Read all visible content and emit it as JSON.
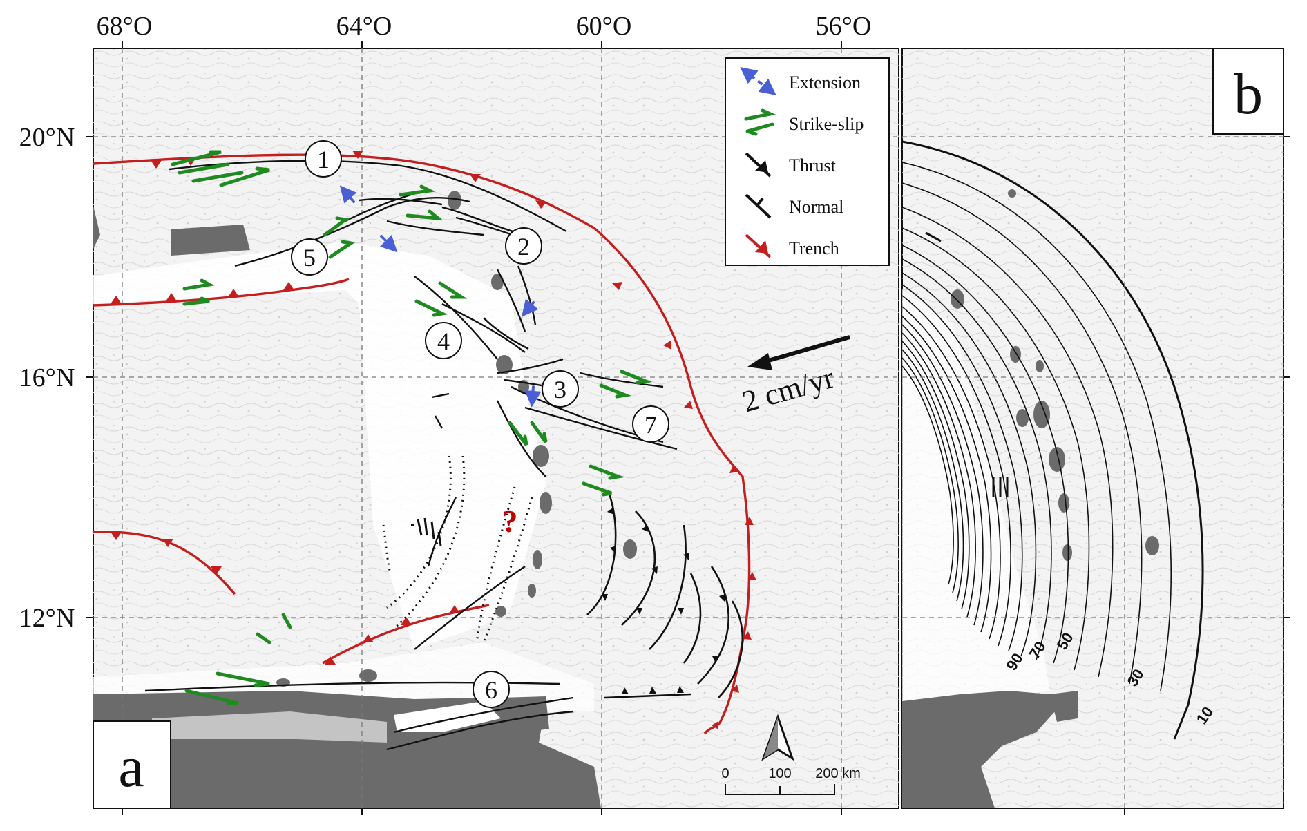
{
  "longitude_labels": [
    "68°O",
    "64°O",
    "60°O",
    "56°O"
  ],
  "latitude_labels": [
    "20°N",
    "16°N",
    "12°N"
  ],
  "legend": [
    {
      "label": "Extension",
      "symbol": "extension-arrow",
      "color": "#4a5fd4"
    },
    {
      "label": "Strike-slip",
      "symbol": "strike-slip-arrows",
      "color": "#1f8a1f"
    },
    {
      "label": "Thrust",
      "symbol": "thrust-fault",
      "color": "#111111"
    },
    {
      "label": "Normal",
      "symbol": "normal-fault",
      "color": "#111111"
    },
    {
      "label": "Trench",
      "symbol": "trench",
      "color": "#c41e1e"
    }
  ],
  "panel_a_label": "a",
  "panel_b_label": "b",
  "numbered_markers": [
    "1",
    "2",
    "3",
    "4",
    "5",
    "6",
    "7"
  ],
  "velocity_label": "2 cm/yr",
  "unknown_marker": "?",
  "scale_bar": {
    "labels": [
      "0",
      "100",
      "200 km"
    ]
  },
  "slab_contour_labels": [
    "90",
    "70",
    "50",
    "30",
    "10"
  ],
  "colors": {
    "trench": "#c41e1e",
    "extension": "#4a5fd4",
    "strike_slip": "#1f8a1f",
    "land": "#6b6b6b",
    "fault": "#111111"
  }
}
